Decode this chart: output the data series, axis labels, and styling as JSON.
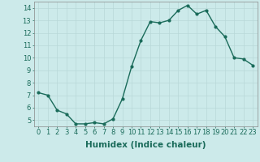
{
  "x": [
    0,
    1,
    2,
    3,
    4,
    5,
    6,
    7,
    8,
    9,
    10,
    11,
    12,
    13,
    14,
    15,
    16,
    17,
    18,
    19,
    20,
    21,
    22,
    23
  ],
  "y": [
    7.2,
    7.0,
    5.8,
    5.5,
    4.7,
    4.7,
    4.8,
    4.7,
    5.1,
    6.7,
    9.3,
    11.4,
    12.9,
    12.8,
    13.0,
    13.8,
    14.2,
    13.5,
    13.8,
    12.5,
    11.7,
    10.0,
    9.9,
    9.4
  ],
  "line_color": "#1a6b5a",
  "marker_color": "#1a6b5a",
  "bg_color": "#cceaea",
  "grid_color": "#b8d8d8",
  "xlabel": "Humidex (Indice chaleur)",
  "ylim": [
    4.5,
    14.5
  ],
  "xlim": [
    -0.5,
    23.5
  ],
  "yticks": [
    5,
    6,
    7,
    8,
    9,
    10,
    11,
    12,
    13,
    14
  ],
  "xticks": [
    0,
    1,
    2,
    3,
    4,
    5,
    6,
    7,
    8,
    9,
    10,
    11,
    12,
    13,
    14,
    15,
    16,
    17,
    18,
    19,
    20,
    21,
    22,
    23
  ],
  "xtick_labels": [
    "0",
    "1",
    "2",
    "3",
    "4",
    "5",
    "6",
    "7",
    "8",
    "9",
    "10",
    "11",
    "12",
    "13",
    "14",
    "15",
    "16",
    "17",
    "18",
    "19",
    "20",
    "21",
    "22",
    "23"
  ],
  "xlabel_fontsize": 7.5,
  "tick_fontsize": 6,
  "linewidth": 1.0,
  "markersize": 2.0
}
